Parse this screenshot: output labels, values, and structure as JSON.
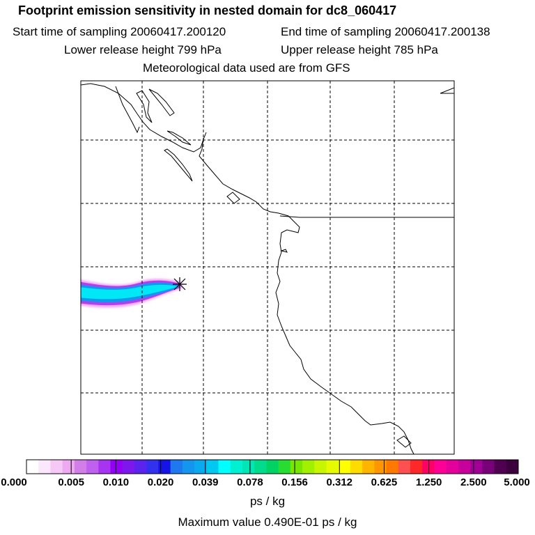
{
  "header": {
    "title": "Footprint emission sensitivity in nested domain for dc8_060417",
    "start_time": "Start time of sampling 20060417.200120",
    "end_time": "End time of sampling 20060417.200138",
    "lower_height": "Lower release height  799 hPa",
    "upper_height": "Upper release height  785 hPa",
    "met_data": "Meteorological data used are from GFS"
  },
  "colorbar": {
    "tick_labels": [
      "0.000",
      "0.005",
      "0.010",
      "0.020",
      "0.039",
      "0.078",
      "0.156",
      "0.312",
      "0.625",
      "1.250",
      "2.500",
      "5.000"
    ],
    "unit": "ps / kg",
    "colors": [
      "#ffffff",
      "#fce8fc",
      "#f5c8f5",
      "#eeaaf0",
      "#d27ee8",
      "#c060ee",
      "#a734f0",
      "#9400f4",
      "#7c18ee",
      "#5a24ee",
      "#3232ee",
      "#1414e6",
      "#1e78ee",
      "#1496ee",
      "#0aaaf0",
      "#00c8f0",
      "#00ffff",
      "#00f0d2",
      "#00e6b4",
      "#00dc8c",
      "#00d264",
      "#28dc32",
      "#78e600",
      "#a0f000",
      "#c8f500",
      "#e6fa00",
      "#ffff00",
      "#ffdc00",
      "#ffb400",
      "#ff9600",
      "#ff7800",
      "#ff5050",
      "#ff2828",
      "#ff0064",
      "#ff0096",
      "#e6009b",
      "#c8009b",
      "#a00096",
      "#780078",
      "#500050",
      "#3c003c"
    ]
  },
  "footer": {
    "max_value": "Maximum value  0.490E-01 ps / kg"
  }
}
